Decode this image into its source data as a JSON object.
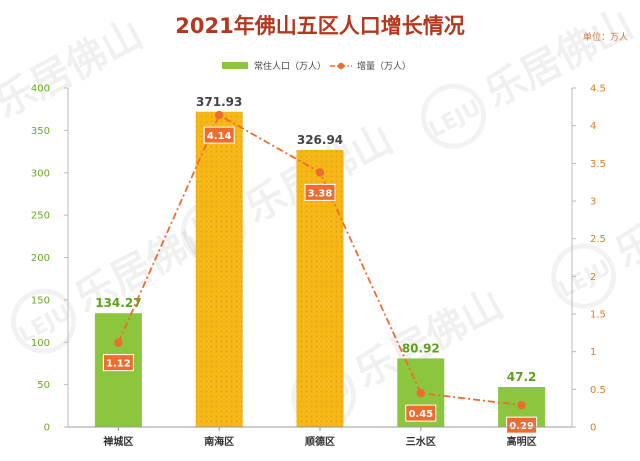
{
  "chart_data": {
    "type": "bar",
    "title": "2021年佛山五区人口增长情况",
    "unit_note": "单位：万人",
    "categories": [
      "禅城区",
      "南海区",
      "顺德区",
      "三水区",
      "高明区"
    ],
    "series": [
      {
        "name": "常住人口（万人）",
        "type": "bar",
        "axis": "left",
        "values": [
          134.27,
          371.93,
          326.94,
          80.92,
          47.2
        ],
        "value_labels": [
          "134.27",
          "371.93",
          "326.94",
          "80.92",
          "47.2"
        ]
      },
      {
        "name": "增量（万人）",
        "type": "line",
        "axis": "right",
        "values": [
          1.12,
          4.14,
          3.38,
          0.45,
          0.29
        ],
        "value_labels": [
          "1.12",
          "4.14",
          "3.38",
          "0.45",
          "0.29"
        ]
      }
    ],
    "y_left": {
      "min": 0,
      "max": 400,
      "ticks": [
        "0",
        "50",
        "100",
        "150",
        "200",
        "250",
        "300",
        "350",
        "400"
      ]
    },
    "y_right": {
      "min": 0,
      "max": 4.5,
      "ticks": [
        "0",
        "0.5",
        "1",
        "1.5",
        "2",
        "2.5",
        "3",
        "3.5",
        "4",
        "4.5"
      ]
    },
    "legend_position": "top-center",
    "grid": false
  },
  "watermark": {
    "logo": "LEJU",
    "text": "乐居佛山"
  },
  "colors": {
    "title": "#b5371f",
    "bar_green": "#8cc63f",
    "bar_yellow": "#f6b816",
    "bar_dots": "#e0951a",
    "line": "#ed6d2f",
    "label_box": "#ed6d2f",
    "axis_left": "#6aaa1e",
    "axis_right": "#e07b22",
    "bar_label_green": "#5f9f1c",
    "bar_label_dark": "#444444",
    "unit": "#d07a3a"
  }
}
